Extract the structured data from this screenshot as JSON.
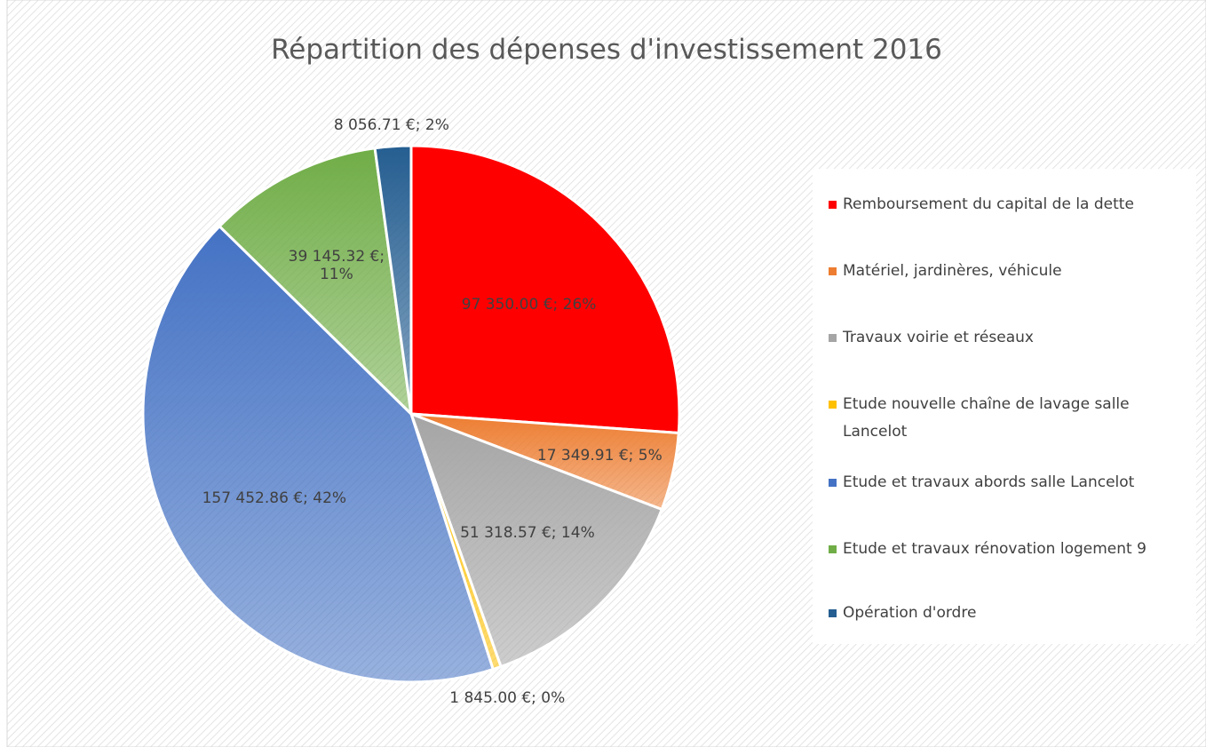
{
  "chart_data": {
    "type": "pie",
    "title": "Répartition des dépenses d'investissement 2016",
    "categories": [
      "Remboursement du capital de la dette",
      "Matériel, jardinères, véhicule",
      "Travaux voirie et réseaux",
      "Etude nouvelle chaîne de lavage salle Lancelot",
      "Etude et travaux abords salle Lancelot",
      "Etude et travaux rénovation logement 9",
      "Opération d'ordre"
    ],
    "values": [
      97350.0,
      17349.91,
      51318.57,
      1845.0,
      157452.86,
      39145.32,
      8056.71
    ],
    "value_labels": [
      "97 350.00 €; 26%",
      "17 349.91 €; 5%",
      "51 318.57 €; 14%",
      "1 845.00 €; 0%",
      "157 452.86 €; 42%",
      "39 145.32 €; 11%",
      "8 056.71 €; 2%"
    ],
    "colors": [
      "#ff0000",
      "#ed7d31",
      "#a5a5a5",
      "#ffc000",
      "#4472c4",
      "#70ad47",
      "#255e91"
    ],
    "legend": "right"
  }
}
